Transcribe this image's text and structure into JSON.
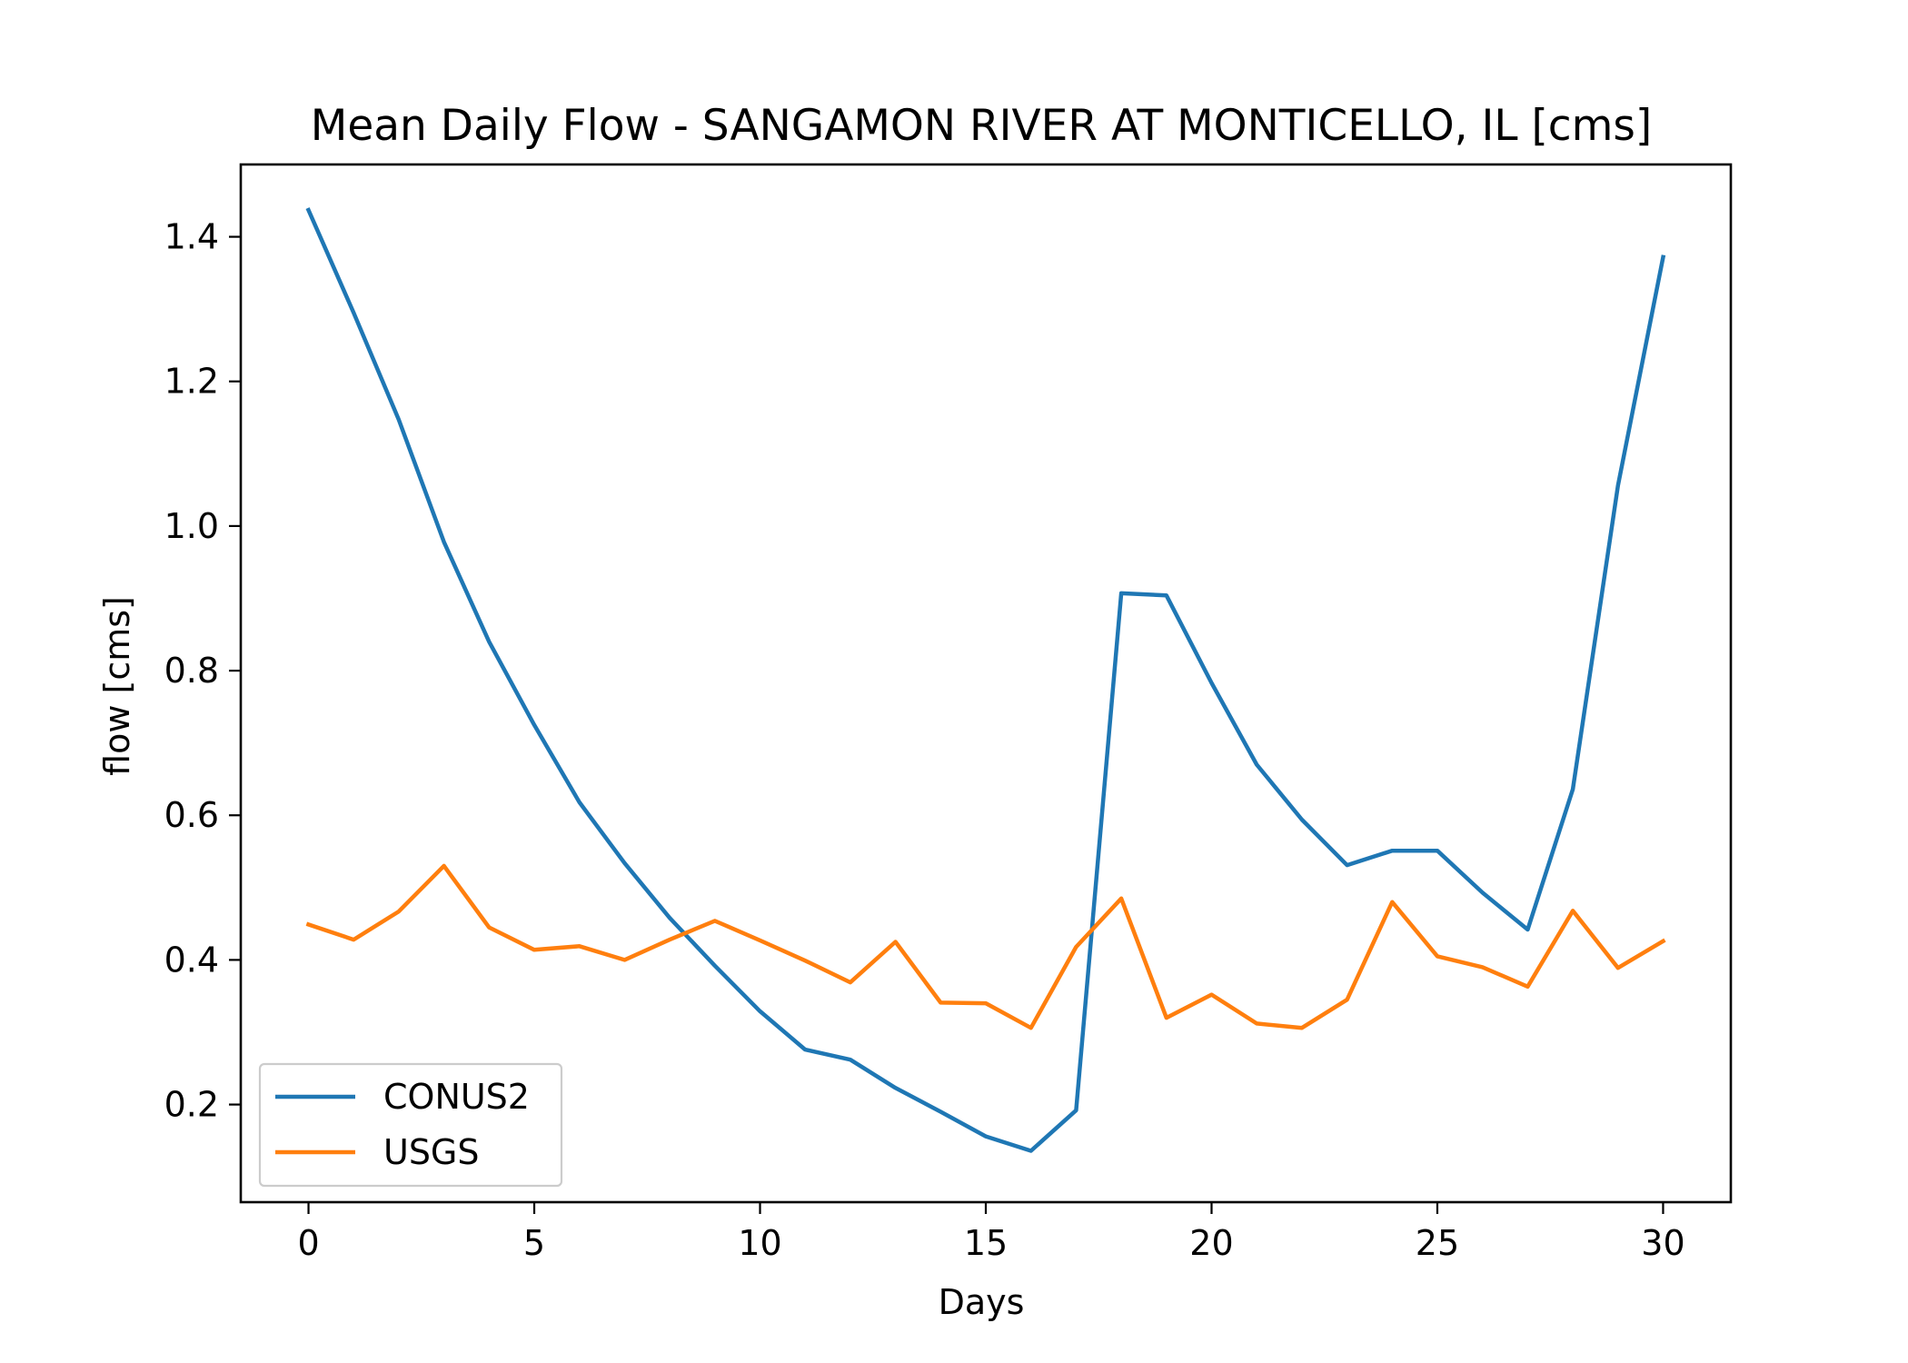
{
  "chart_data": {
    "type": "line",
    "title": "Mean Daily Flow - SANGAMON RIVER AT MONTICELLO, IL [cms]",
    "xlabel": "Days",
    "ylabel": "flow [cms]",
    "xlim": [
      -1.5,
      31.5
    ],
    "ylim": [
      0.065,
      1.5
    ],
    "xticks": [
      0,
      5,
      10,
      15,
      20,
      25,
      30
    ],
    "yticks": [
      0.2,
      0.4,
      0.6,
      0.8,
      1.0,
      1.2,
      1.4
    ],
    "ytick_labels": [
      "0.2",
      "0.4",
      "0.6",
      "0.8",
      "1.0",
      "1.2",
      "1.4"
    ],
    "grid": false,
    "legend_position": "lower-left",
    "x": [
      0,
      1,
      2,
      3,
      4,
      5,
      6,
      7,
      8,
      9,
      10,
      11,
      12,
      13,
      14,
      15,
      16,
      17,
      18,
      19,
      20,
      21,
      22,
      23,
      24,
      25,
      26,
      27,
      28,
      29,
      30
    ],
    "series": [
      {
        "name": "CONUS2",
        "color": "#1f77b4",
        "values": [
          1.437,
          1.295,
          1.147,
          0.978,
          0.84,
          0.725,
          0.618,
          0.534,
          0.458,
          0.392,
          0.329,
          0.276,
          0.262,
          0.223,
          0.19,
          0.156,
          0.136,
          0.192,
          0.907,
          0.904,
          0.783,
          0.67,
          0.594,
          0.531,
          0.551,
          0.551,
          0.493,
          0.442,
          0.636,
          1.056,
          1.372
        ]
      },
      {
        "name": "USGS",
        "color": "#ff7f0e",
        "values": [
          0.449,
          0.428,
          0.467,
          0.53,
          0.445,
          0.414,
          0.419,
          0.4,
          0.428,
          0.454,
          0.427,
          0.399,
          0.369,
          0.425,
          0.341,
          0.34,
          0.306,
          0.418,
          0.485,
          0.32,
          0.352,
          0.312,
          0.306,
          0.345,
          0.48,
          0.405,
          0.39,
          0.363,
          0.468,
          0.389,
          0.426
        ]
      }
    ]
  }
}
